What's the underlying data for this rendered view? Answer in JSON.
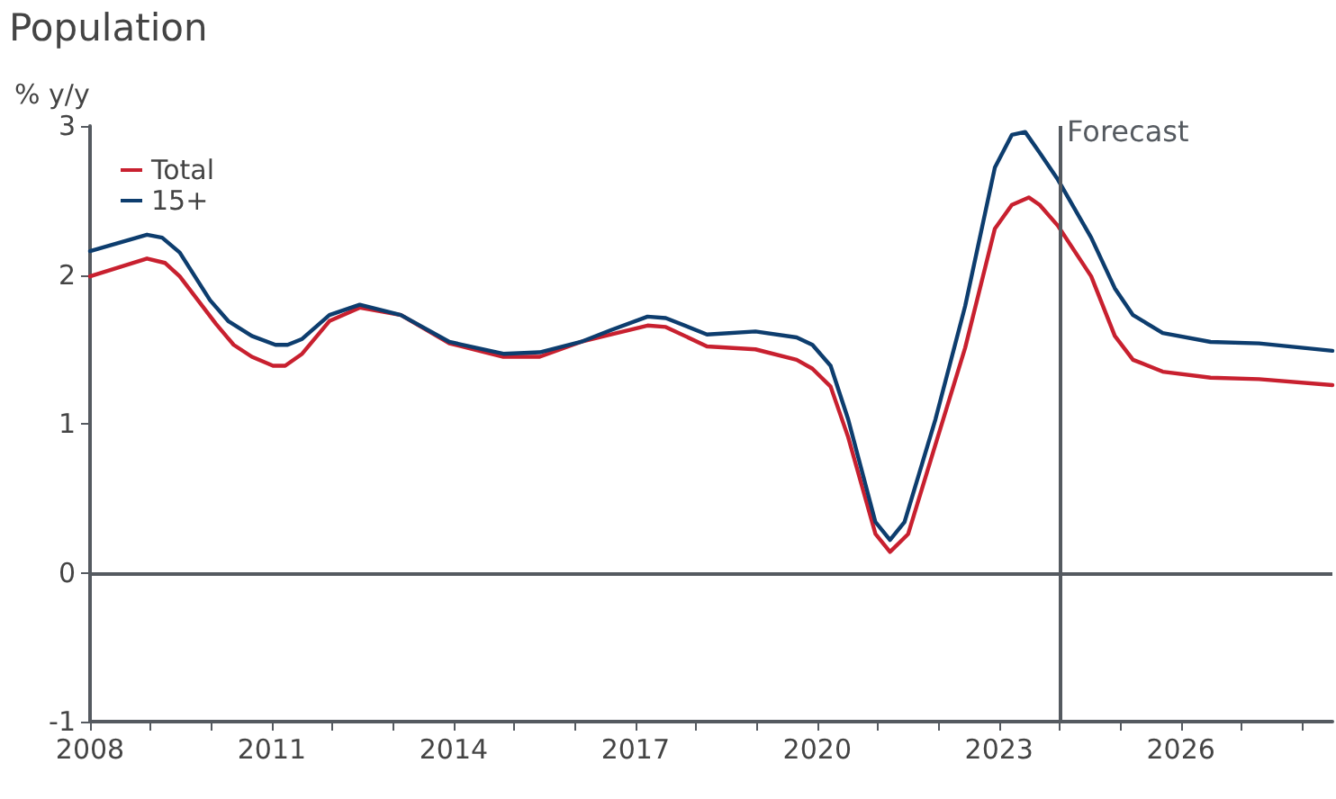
{
  "chart_data": {
    "type": "line",
    "title": "Population",
    "ylabel": "% y/y",
    "xlim": [
      2008,
      2028.5
    ],
    "xticks": [
      2008,
      {
        "value": 2009,
        "label": null
      },
      {
        "value": 2010,
        "label": null
      },
      2011,
      {
        "value": 2012,
        "label": null
      },
      {
        "value": 2013,
        "label": null
      },
      2014,
      {
        "value": 2015,
        "label": null
      },
      {
        "value": 2016,
        "label": null
      },
      2017,
      {
        "value": 2018,
        "label": null
      },
      {
        "value": 2019,
        "label": null
      },
      2020,
      {
        "value": 2021,
        "label": null
      },
      {
        "value": 2022,
        "label": null
      },
      2023,
      {
        "value": 2024,
        "label": null
      },
      {
        "value": 2025,
        "label": null
      },
      2026,
      {
        "value": 2027,
        "label": null
      },
      {
        "value": 2028,
        "label": null
      }
    ],
    "ylim": [
      -1,
      3
    ],
    "yticks": [
      -1,
      0,
      1,
      2,
      3
    ],
    "grid": false,
    "legend": "top left",
    "marker": "none",
    "line_style": "solid",
    "ref_lines": [
      {
        "axis": "x",
        "value": 2024,
        "label": "Forecast",
        "color": "#555a60"
      },
      {
        "axis": "y",
        "value": 0,
        "label": null,
        "color": "#555a60"
      }
    ],
    "series": [
      {
        "name": "Total",
        "color": "#c8202f",
        "x": [
          2008,
          2008.94,
          2009.24,
          2009.48,
          2010.08,
          2010.37,
          2010.67,
          2011.02,
          2011.22,
          2011.5,
          2011.95,
          2012.45,
          2013.13,
          2013.93,
          2014.82,
          2015.42,
          2016.1,
          2016.6,
          2017.2,
          2017.5,
          2018.18,
          2018.98,
          2019.66,
          2019.92,
          2020.22,
          2020.51,
          2020.96,
          2021.2,
          2021.5,
          2021.95,
          2022.44,
          2022.93,
          2023.21,
          2023.49,
          2023.67,
          2023.97,
          2024.52,
          2024.91,
          2025.21,
          2025.7,
          2026.49,
          2027.29,
          2028.5
        ],
        "values": [
          1.99,
          2.11,
          2.08,
          1.99,
          1.67,
          1.53,
          1.45,
          1.39,
          1.39,
          1.47,
          1.69,
          1.78,
          1.73,
          1.54,
          1.45,
          1.45,
          1.55,
          1.6,
          1.66,
          1.65,
          1.52,
          1.5,
          1.43,
          1.37,
          1.25,
          0.91,
          0.26,
          0.14,
          0.26,
          0.86,
          1.51,
          2.31,
          2.47,
          2.52,
          2.47,
          2.33,
          1.99,
          1.59,
          1.43,
          1.35,
          1.31,
          1.3,
          1.26
        ]
      },
      {
        "name": "15+",
        "color": "#0d3d6e",
        "x": [
          2008,
          2008.94,
          2009.19,
          2009.48,
          2009.98,
          2010.28,
          2010.67,
          2011.06,
          2011.26,
          2011.5,
          2011.95,
          2012.45,
          2013.13,
          2013.93,
          2014.82,
          2015.42,
          2016.1,
          2016.6,
          2017.2,
          2017.5,
          2018.18,
          2018.98,
          2019.66,
          2019.92,
          2020.22,
          2020.51,
          2020.96,
          2021.2,
          2021.44,
          2021.95,
          2022.44,
          2022.93,
          2023.21,
          2023.43,
          2023.67,
          2023.97,
          2024.52,
          2024.91,
          2025.21,
          2025.7,
          2026.49,
          2027.29,
          2028.5
        ],
        "values": [
          2.16,
          2.27,
          2.25,
          2.15,
          1.83,
          1.69,
          1.59,
          1.53,
          1.53,
          1.57,
          1.73,
          1.8,
          1.73,
          1.55,
          1.47,
          1.48,
          1.55,
          1.63,
          1.72,
          1.71,
          1.6,
          1.62,
          1.58,
          1.53,
          1.39,
          1.03,
          0.34,
          0.22,
          0.34,
          1.03,
          1.79,
          2.72,
          2.94,
          2.96,
          2.82,
          2.64,
          2.25,
          1.91,
          1.73,
          1.61,
          1.55,
          1.54,
          1.49
        ]
      }
    ]
  }
}
